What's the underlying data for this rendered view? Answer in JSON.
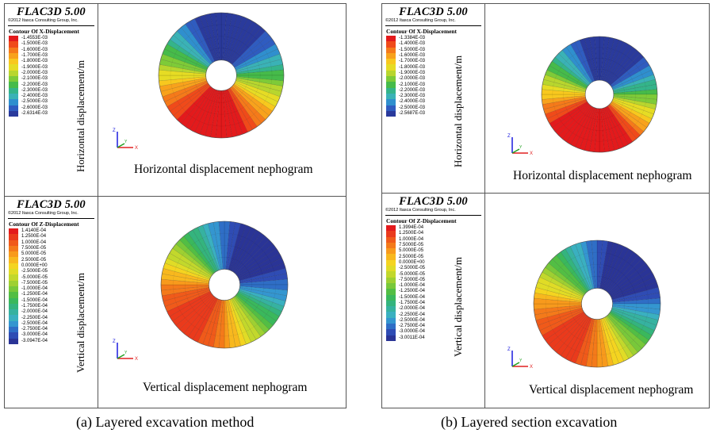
{
  "figures": [
    {
      "caption": "(a) Layered excavation method",
      "panels": [
        {
          "software": "FLAC3D 5.00",
          "copyright": "©2012 Itasca Consulting Group, Inc.",
          "contour_title": "Contour Of X-Displacement",
          "y_axis_label": "Horizontal displacement/m",
          "plot_caption": "Horizontal displacement nephogram",
          "legend": [
            "-1.4553E-03",
            "-1.5000E-03",
            "-1.6000E-03",
            "-1.7000E-03",
            "-1.8000E-03",
            "-1.9000E-03",
            "-2.0000E-03",
            "-2.1000E-03",
            "-2.2000E-03",
            "-2.3000E-03",
            "-2.4000E-03",
            "-2.5000E-03",
            "-2.6000E-03",
            "-2.6314E-03"
          ]
        },
        {
          "software": "FLAC3D 5.00",
          "copyright": "©2012 Itasca Consulting Group, Inc.",
          "contour_title": "Contour Of Z-Displacement",
          "y_axis_label": "Vertical displacement/m",
          "plot_caption": "Vertical displacement nephogram",
          "legend": [
            "1.4140E-04",
            "1.2500E-04",
            "1.0000E-04",
            "7.5000E-05",
            "5.0000E-05",
            "2.5000E-05",
            "0.0000E+00",
            "-2.5000E-05",
            "-5.0000E-05",
            "-7.5000E-05",
            "-1.0000E-04",
            "-1.2500E-04",
            "-1.5000E-04",
            "-1.7500E-04",
            "-2.0000E-04",
            "-2.2500E-04",
            "-2.5000E-04",
            "-2.7500E-04",
            "-3.0000E-04",
            "-3.0947E-04"
          ]
        }
      ]
    },
    {
      "caption": "(b) Layered section excavation",
      "panels": [
        {
          "software": "FLAC3D 5.00",
          "copyright": "©2012 Itasca Consulting Group, Inc.",
          "contour_title": "Contour Of X-Displacement",
          "y_axis_label": "Horizontal displacement/m",
          "plot_caption": "Horizontal displacement nephogram",
          "legend": [
            "-1.3384E-03",
            "-1.4000E-03",
            "-1.5000E-03",
            "-1.6000E-03",
            "-1.7000E-03",
            "-1.8000E-03",
            "-1.9000E-03",
            "-2.0000E-03",
            "-2.1000E-03",
            "-2.2000E-03",
            "-2.3000E-03",
            "-2.4000E-03",
            "-2.5000E-03",
            "-2.5687E-03"
          ]
        },
        {
          "software": "FLAC3D 5.00",
          "copyright": "©2012 Itasca Consulting Group, Inc.",
          "contour_title": "Contour Of Z-Displacement",
          "y_axis_label": "Vertical displacement/m",
          "plot_caption": "Vertical displacement nephogram",
          "legend": [
            "1.3994E-04",
            "1.2500E-04",
            "1.0000E-04",
            "7.5000E-05",
            "5.0000E-05",
            "2.5000E-05",
            "0.0000E+00",
            "-2.5000E-05",
            "-5.0000E-05",
            "-7.5000E-05",
            "-1.0000E-04",
            "-1.2500E-04",
            "-1.5000E-04",
            "-1.7500E-04",
            "-2.0000E-04",
            "-2.2500E-04",
            "-2.5000E-04",
            "-2.7500E-04",
            "-3.0000E-04",
            "-3.0011E-04"
          ]
        }
      ]
    }
  ],
  "axis_labels": {
    "z": "Z",
    "y": "Y",
    "x": "X"
  },
  "colors": {
    "x_legend": [
      "#e31a1c",
      "#f04a1a",
      "#f57a1a",
      "#f8a21c",
      "#f8c81e",
      "#e6dc24",
      "#b8d62e",
      "#7ecb38",
      "#46bb4a",
      "#34b48a",
      "#3ab2b6",
      "#2f8fce",
      "#2f5cc0",
      "#2a3a9c"
    ],
    "z_legend": [
      "#e31a1c",
      "#ea3a1c",
      "#f05a1a",
      "#f47a1a",
      "#f89a1c",
      "#f8b81e",
      "#f4d420",
      "#e0dc26",
      "#c2d82c",
      "#9ed032",
      "#78c83a",
      "#52be44",
      "#3ab85c",
      "#34b47e",
      "#36b2a0",
      "#3ab0c0",
      "#3496d0",
      "#2f6ec6",
      "#2f4cb4",
      "#2a3496"
    ]
  }
}
